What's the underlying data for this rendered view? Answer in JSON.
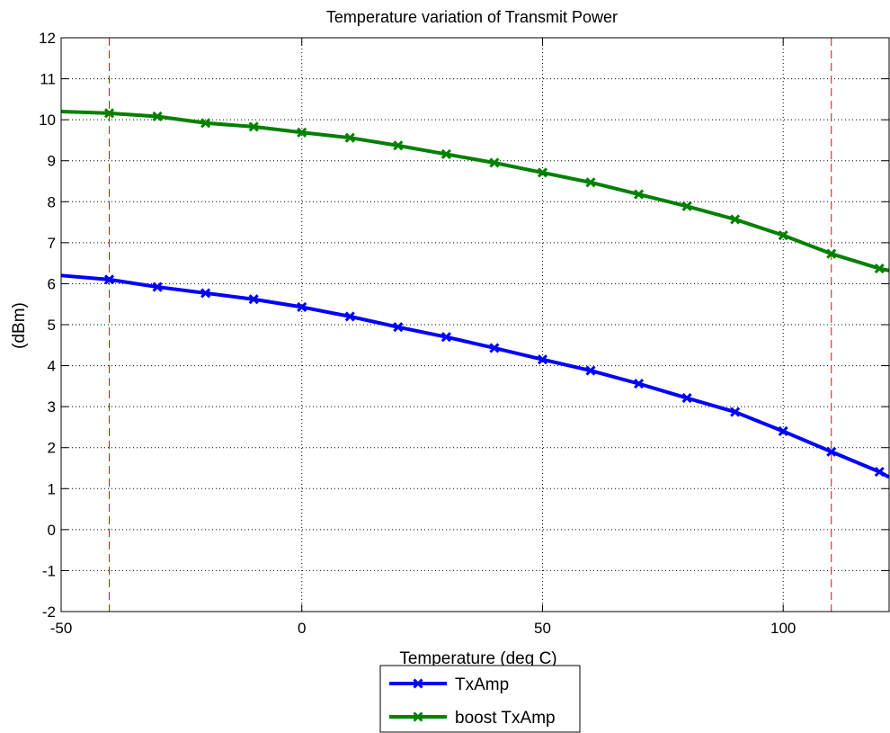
{
  "chart_data": {
    "type": "line",
    "title": "Temperature variation of Transmit Power",
    "xlabel": "Temperature (deg C)",
    "ylabel": "(dBm)",
    "xlim": [
      -50,
      122
    ],
    "ylim": [
      -2,
      12
    ],
    "xticks": [
      -50,
      0,
      50,
      100
    ],
    "yticks": [
      -2,
      -1,
      0,
      1,
      2,
      3,
      4,
      5,
      6,
      7,
      8,
      9,
      10,
      11,
      12
    ],
    "grid": true,
    "legend_position": "bottom-center-outside",
    "reference_lines_x": [
      -40,
      110
    ],
    "reference_line_color": "#ff0000",
    "series": [
      {
        "name": "TxAmp",
        "color": "#0000ff",
        "marker": "x",
        "x": [
          -50,
          -40,
          -30,
          -20,
          -10,
          0,
          10,
          20,
          30,
          40,
          50,
          60,
          70,
          80,
          90,
          100,
          110,
          120,
          122
        ],
        "y": [
          6.2,
          6.1,
          5.92,
          5.77,
          5.62,
          5.43,
          5.2,
          4.94,
          4.7,
          4.43,
          4.15,
          3.88,
          3.56,
          3.21,
          2.87,
          2.4,
          1.9,
          1.41,
          1.28
        ]
      },
      {
        "name": "boost TxAmp",
        "color": "#008000",
        "marker": "x",
        "x": [
          -50,
          -40,
          -30,
          -20,
          -10,
          0,
          10,
          20,
          30,
          40,
          50,
          60,
          70,
          80,
          90,
          100,
          110,
          120,
          122
        ],
        "y": [
          10.2,
          10.16,
          10.08,
          9.92,
          9.83,
          9.69,
          9.56,
          9.37,
          9.16,
          8.95,
          8.71,
          8.47,
          8.18,
          7.89,
          7.57,
          7.18,
          6.73,
          6.37,
          6.32
        ]
      }
    ]
  }
}
